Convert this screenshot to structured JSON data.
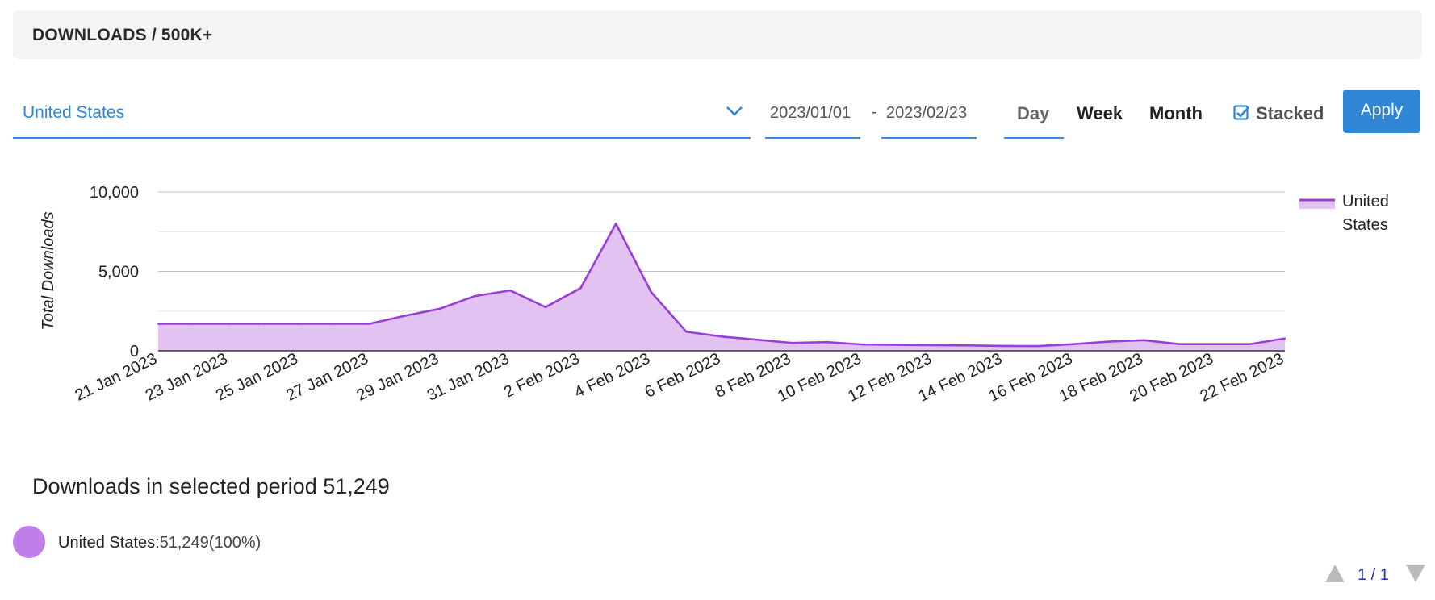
{
  "header": {
    "title": "DOWNLOADS / 500K+"
  },
  "filters": {
    "country": "United States",
    "date_from": "2023/01/01",
    "date_separator": "-",
    "date_to": "2023/02/23",
    "periods": [
      "Day",
      "Week",
      "Month"
    ],
    "active_period": "Day",
    "stacked_label": "Stacked",
    "stacked_checked": true,
    "apply_label": "Apply"
  },
  "colors": {
    "accent": "#2f86d5",
    "series_line": "#9a3fd6",
    "series_fill": "#e2c2f1",
    "legend_dot": "#c07ee8"
  },
  "chart_data": {
    "type": "area",
    "ylabel": "Total Downloads",
    "ylim": [
      0,
      10000
    ],
    "yticks": [
      0,
      5000,
      10000
    ],
    "ytick_labels": [
      "0",
      "5,000",
      "10,000"
    ],
    "grid": true,
    "legend_position": "right",
    "x": [
      "21 Jan 2023",
      "22 Jan 2023",
      "23 Jan 2023",
      "24 Jan 2023",
      "25 Jan 2023",
      "26 Jan 2023",
      "27 Jan 2023",
      "28 Jan 2023",
      "29 Jan 2023",
      "30 Jan 2023",
      "31 Jan 2023",
      "1 Feb 2023",
      "2 Feb 2023",
      "3 Feb 2023",
      "4 Feb 2023",
      "5 Feb 2023",
      "6 Feb 2023",
      "7 Feb 2023",
      "8 Feb 2023",
      "9 Feb 2023",
      "10 Feb 2023",
      "11 Feb 2023",
      "12 Feb 2023",
      "13 Feb 2023",
      "14 Feb 2023",
      "15 Feb 2023",
      "16 Feb 2023",
      "17 Feb 2023",
      "18 Feb 2023",
      "19 Feb 2023",
      "20 Feb 2023",
      "21 Feb 2023",
      "22 Feb 2023"
    ],
    "xtick_labels": [
      "21 Jan 2023",
      "23 Jan 2023",
      "25 Jan 2023",
      "27 Jan 2023",
      "29 Jan 2023",
      "31 Jan 2023",
      "2 Feb 2023",
      "4 Feb 2023",
      "6 Feb 2023",
      "8 Feb 2023",
      "10 Feb 2023",
      "12 Feb 2023",
      "14 Feb 2023",
      "16 Feb 2023",
      "18 Feb 2023",
      "20 Feb 2023",
      "22 Feb 2023"
    ],
    "series": [
      {
        "name": "United States",
        "values": [
          1700,
          1700,
          1700,
          1700,
          1700,
          1700,
          1700,
          2200,
          2650,
          3450,
          3800,
          2750,
          3950,
          8000,
          3700,
          1200,
          900,
          700,
          500,
          550,
          400,
          380,
          360,
          340,
          310,
          300,
          420,
          580,
          670,
          420,
          420,
          420,
          780
        ]
      }
    ]
  },
  "legend": {
    "line1": "United",
    "line2": "States"
  },
  "summary": {
    "heading": "Downloads in selected period 51,249",
    "country_label": "United States:",
    "country_value": "51,249(100%)"
  },
  "pager": {
    "text": "1 / 1"
  }
}
